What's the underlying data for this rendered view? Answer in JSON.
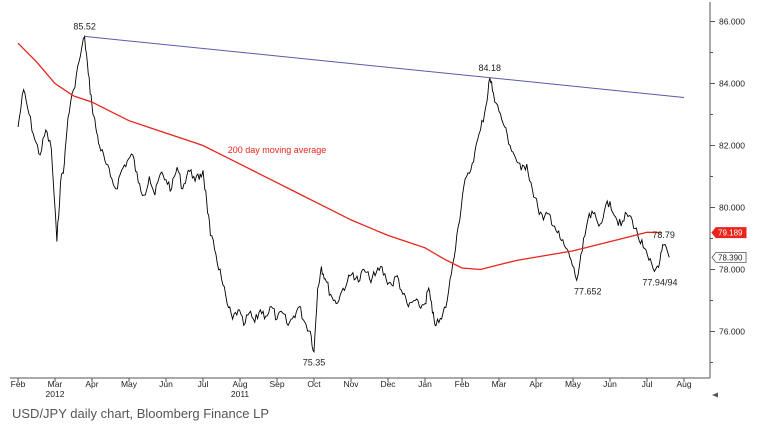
{
  "caption": "USD/JPY daily chart, Bloomberg Finance LP",
  "chart_data": {
    "type": "line",
    "title": "",
    "xlabel": "",
    "ylabel": "",
    "y_axis_position": "right",
    "ylim": [
      74.5,
      86.5
    ],
    "y_ticks": [
      "86.000",
      "84.000",
      "82.000",
      "80.000",
      "78.000",
      "76.000"
    ],
    "y_tick_values": [
      86,
      84,
      82,
      80,
      78,
      76
    ],
    "x_month_labels": [
      "Feb",
      "Mar",
      "Apr",
      "May",
      "Jun",
      "Jul",
      "Aug",
      "Sep",
      "Oct",
      "Nov",
      "Dec",
      "Jan",
      "Feb",
      "Mar",
      "Apr",
      "May",
      "Jun",
      "Jul",
      "Aug"
    ],
    "x_year_labels": [
      {
        "label": "2011",
        "at": "Aug"
      },
      {
        "label": "2012",
        "at": "Mar"
      }
    ],
    "x_month_index": [
      0,
      1,
      2,
      3,
      4,
      5,
      6,
      7,
      8,
      9,
      10,
      11,
      12,
      13,
      14,
      15,
      16,
      17,
      18
    ],
    "colors": {
      "price": "#000000",
      "ma": "#e8241c",
      "trend": "#5a5aa8",
      "axis": "#555555",
      "label_box_ma": "#e8241c"
    },
    "series": [
      {
        "kind": "price",
        "x_month": [
          0,
          0.15,
          0.3,
          0.45,
          0.6,
          0.75,
          0.9,
          1.05,
          1.15,
          1.25,
          1.35,
          1.5,
          1.65,
          1.8,
          1.9,
          2.0,
          2.1,
          2.2,
          2.35,
          2.5,
          2.65,
          2.8,
          2.95,
          3.1,
          3.25,
          3.4,
          3.55,
          3.7,
          3.85,
          4.0,
          4.15,
          4.3,
          4.45,
          4.6,
          4.75,
          4.9,
          5.0,
          5.1,
          5.2,
          5.35,
          5.5,
          5.65,
          5.8,
          5.95,
          6.1,
          6.25,
          6.4,
          6.55,
          6.7,
          6.85,
          7.0,
          7.15,
          7.3,
          7.45,
          7.6,
          7.75,
          7.9,
          8.0,
          8.1,
          8.2,
          8.3,
          8.45,
          8.6,
          8.75,
          8.9,
          9.05,
          9.2,
          9.35,
          9.5,
          9.65,
          9.8,
          9.95,
          10.1,
          10.25,
          10.4,
          10.55,
          10.7,
          10.85,
          11.0,
          11.1,
          11.2,
          11.3,
          11.45,
          11.6,
          11.75,
          11.9,
          12.05,
          12.2,
          12.35,
          12.5,
          12.65,
          12.75,
          12.85,
          13.0,
          13.15,
          13.3,
          13.45,
          13.6,
          13.75,
          13.9,
          14.05,
          14.2,
          14.35,
          14.5,
          14.65,
          14.8,
          14.95,
          15.1,
          15.25,
          15.4,
          15.55,
          15.7,
          15.85,
          16.0,
          16.15,
          16.3,
          16.45,
          16.6,
          16.75,
          16.9,
          17.05,
          17.2,
          17.35,
          17.45,
          17.6
        ],
        "y": [
          82.6,
          83.8,
          83.0,
          82.2,
          81.7,
          82.5,
          81.9,
          78.9,
          80.8,
          81.4,
          82.9,
          83.8,
          84.7,
          85.52,
          84.3,
          83.3,
          82.6,
          82.0,
          81.5,
          81.0,
          80.6,
          81.2,
          81.5,
          81.7,
          80.8,
          80.4,
          81.0,
          80.4,
          81.1,
          80.9,
          80.6,
          81.3,
          80.6,
          81.2,
          81.0,
          80.9,
          81.2,
          80.2,
          79.1,
          78.5,
          77.7,
          76.9,
          76.4,
          76.7,
          76.2,
          76.6,
          76.3,
          76.7,
          76.5,
          76.8,
          76.4,
          76.6,
          76.2,
          76.5,
          76.8,
          76.3,
          76.0,
          75.35,
          77.4,
          78.1,
          77.7,
          77.2,
          76.9,
          77.3,
          77.6,
          77.9,
          77.6,
          78.0,
          77.7,
          77.8,
          78.1,
          77.7,
          77.5,
          77.8,
          77.2,
          76.8,
          77.0,
          76.8,
          76.9,
          77.4,
          76.6,
          76.2,
          76.4,
          77.0,
          78.2,
          79.4,
          80.7,
          81.1,
          81.8,
          82.5,
          83.3,
          84.18,
          83.7,
          83.1,
          82.6,
          82.0,
          81.6,
          81.2,
          81.4,
          80.6,
          80.0,
          79.6,
          79.8,
          79.4,
          79.0,
          78.7,
          78.3,
          77.652,
          78.6,
          79.6,
          79.8,
          79.4,
          79.9,
          80.2,
          79.7,
          79.4,
          79.8,
          79.6,
          79.1,
          78.7,
          78.3,
          77.94,
          78.3,
          78.79,
          78.39
        ]
      },
      {
        "name": "200 day moving average",
        "kind": "ma",
        "x_month": [
          0,
          0.5,
          1.0,
          1.5,
          2.0,
          2.5,
          3.0,
          3.5,
          4.0,
          4.5,
          5.0,
          5.5,
          6.0,
          6.5,
          7.0,
          7.5,
          8.0,
          8.5,
          9.0,
          9.5,
          10.0,
          10.5,
          11.0,
          11.5,
          12.0,
          12.5,
          13.0,
          13.5,
          14.0,
          14.5,
          15.0,
          15.5,
          16.0,
          16.5,
          17.0,
          17.4
        ],
        "y": [
          85.3,
          84.7,
          84.0,
          83.6,
          83.4,
          83.1,
          82.8,
          82.6,
          82.4,
          82.2,
          82.0,
          81.7,
          81.4,
          81.1,
          80.8,
          80.5,
          80.2,
          79.9,
          79.6,
          79.35,
          79.1,
          78.9,
          78.7,
          78.35,
          78.05,
          78.0,
          78.15,
          78.3,
          78.4,
          78.5,
          78.6,
          78.75,
          78.9,
          79.05,
          79.2,
          79.189
        ]
      },
      {
        "name": "trend",
        "kind": "trend",
        "x_month": [
          1.8,
          18.0
        ],
        "y": [
          85.52,
          83.55
        ]
      }
    ],
    "annotations": [
      {
        "text": "85.52",
        "x_month": 1.8,
        "y": 85.52,
        "pos": "above"
      },
      {
        "text": "84.18",
        "x_month": 12.75,
        "y": 84.18,
        "pos": "above"
      },
      {
        "text": "75.35",
        "x_month": 8.0,
        "y": 75.35,
        "pos": "below"
      },
      {
        "text": "77.652",
        "x_month": 15.4,
        "y": 77.652,
        "pos": "below"
      },
      {
        "text": "77.94/94",
        "x_month": 17.35,
        "y": 77.94,
        "pos": "below"
      },
      {
        "text": "78.79",
        "x_month": 17.45,
        "y": 78.79,
        "pos": "above"
      },
      {
        "text": "200 day moving average",
        "x_month": 7.0,
        "y": 81.85,
        "pos": "label",
        "color": "#e8241c"
      }
    ],
    "price_tags": [
      {
        "text": "79.189",
        "y": 79.189,
        "style": "red"
      },
      {
        "text": "78.390",
        "y": 78.39,
        "style": "outline"
      }
    ],
    "grid": false,
    "legend": "none"
  }
}
